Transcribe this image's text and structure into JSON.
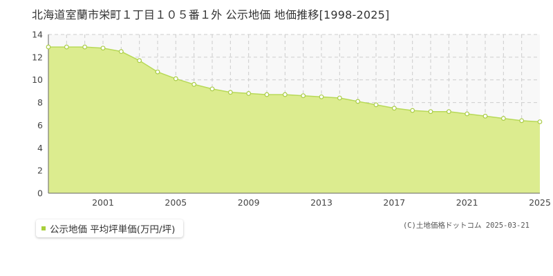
{
  "title": "北海道室蘭市栄町１丁目１０５番１外 公示地価 地価推移[1998-2025]",
  "legend_label": "公示地価 平均坪単価(万円/坪)",
  "copyright": "(C)土地価格ドットコム 2025-03-21",
  "colors": {
    "area_fill": "#dcec8f",
    "line": "#b7d957",
    "marker_fill": "#ffffff",
    "marker_stroke": "#a9cc45",
    "legend_swatch": "#a8cf3a",
    "grid": "#cccccc",
    "axis": "#666666",
    "plot_bg": "#f8f8f8"
  },
  "chart_data": {
    "type": "area",
    "title": "北海道室蘭市栄町１丁目１０５番１外 公示地価 地価推移[1998-2025]",
    "xlabel": "",
    "ylabel": "",
    "x": [
      1998,
      1999,
      2000,
      2001,
      2002,
      2003,
      2004,
      2005,
      2006,
      2007,
      2008,
      2009,
      2010,
      2011,
      2012,
      2013,
      2014,
      2015,
      2016,
      2017,
      2018,
      2019,
      2020,
      2021,
      2022,
      2023,
      2024,
      2025
    ],
    "series": [
      {
        "name": "公示地価 平均坪単価(万円/坪)",
        "values": [
          12.9,
          12.9,
          12.9,
          12.8,
          12.5,
          11.7,
          10.7,
          10.1,
          9.6,
          9.2,
          8.9,
          8.8,
          8.7,
          8.7,
          8.6,
          8.5,
          8.4,
          8.1,
          7.8,
          7.5,
          7.3,
          7.2,
          7.2,
          7.0,
          6.8,
          6.6,
          6.4,
          6.3
        ]
      }
    ],
    "xlim": [
      1998,
      2025
    ],
    "ylim": [
      0,
      14
    ],
    "x_ticks": [
      "2001",
      "2005",
      "2009",
      "2013",
      "2017",
      "2021",
      "2025"
    ],
    "y_ticks": [
      "0",
      "2",
      "4",
      "6",
      "8",
      "10",
      "12",
      "14"
    ],
    "grid": true,
    "legend_position": "bottom-left"
  }
}
